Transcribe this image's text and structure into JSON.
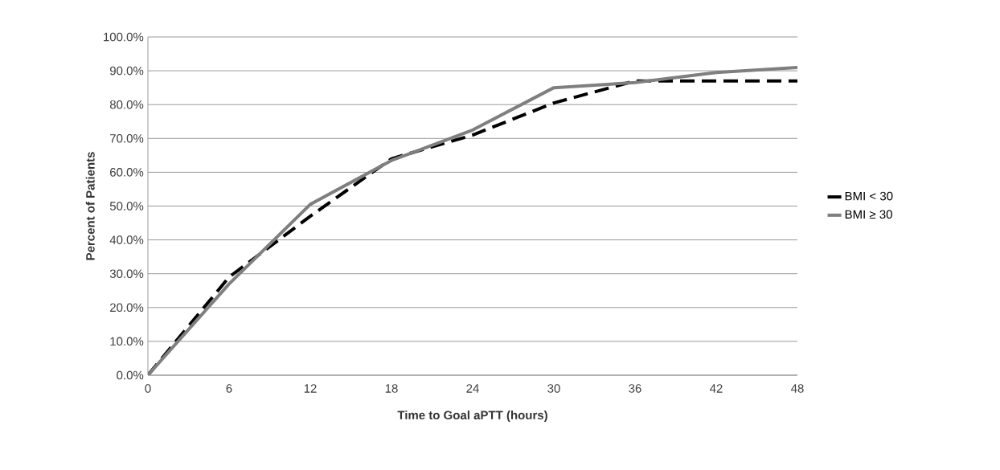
{
  "chart_data": {
    "type": "line",
    "xlabel": "Time to Goal aPTT (hours)",
    "ylabel": "Percent of Patients",
    "x": [
      0,
      6,
      12,
      18,
      24,
      30,
      36,
      42,
      48
    ],
    "series": [
      {
        "name": "BMI < 30",
        "color": "#000000",
        "line_style": "dashed",
        "values": [
          0,
          29,
          47,
          64,
          71,
          80.5,
          87,
          87,
          87
        ]
      },
      {
        "name": "BMI ≥ 30",
        "color": "#7f7f7f",
        "line_style": "solid",
        "values": [
          0,
          27,
          50.5,
          63.5,
          72.5,
          85,
          86.5,
          89.5,
          91
        ]
      }
    ],
    "xlim": [
      0,
      48
    ],
    "xticks": [
      0,
      6,
      12,
      18,
      24,
      30,
      36,
      42,
      48
    ],
    "ylim": [
      0,
      100
    ],
    "yticks": [
      {
        "value": 0,
        "label": "0.0%"
      },
      {
        "value": 10,
        "label": "10.0%"
      },
      {
        "value": 20,
        "label": "20.0%"
      },
      {
        "value": 30,
        "label": "30.0%"
      },
      {
        "value": 40,
        "label": "40.0%"
      },
      {
        "value": 50,
        "label": "50.0%"
      },
      {
        "value": 60,
        "label": "60.0%"
      },
      {
        "value": 70,
        "label": "70.0%"
      },
      {
        "value": 80,
        "label": "80.0%"
      },
      {
        "value": 90,
        "label": "90.0%"
      },
      {
        "value": 100,
        "label": "100.0%"
      }
    ],
    "grid": "y",
    "legend": "right",
    "marker": "none"
  }
}
